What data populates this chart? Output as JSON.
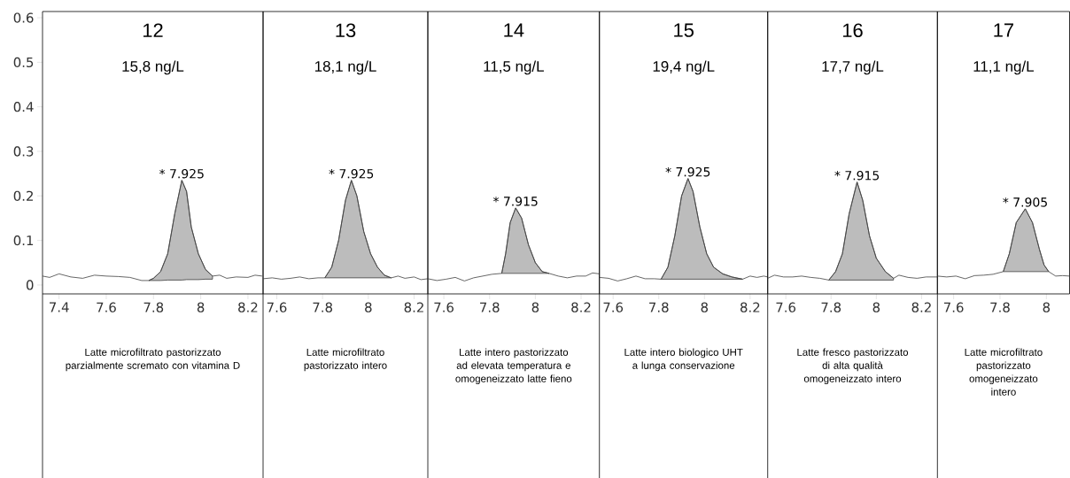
{
  "chart_data": [
    {
      "type": "line",
      "title": "12",
      "subtitle": "15,8 ng/L",
      "xlim": [
        7.33,
        8.264
      ],
      "xticks": [
        7.4,
        7.6,
        7.8,
        8,
        8.2
      ],
      "ylim": [
        -0.02,
        0.614
      ],
      "yticks": [
        0,
        0.1,
        0.2,
        0.3,
        0.4,
        0.5,
        0.6
      ],
      "series": [
        {
          "color": "#404040",
          "x": [
            7.33,
            7.36,
            7.4,
            7.45,
            7.5,
            7.55,
            7.6,
            7.65,
            7.7,
            7.75,
            7.78,
            7.8,
            7.83,
            7.86,
            7.89,
            7.92,
            7.94,
            7.96,
            7.99,
            8.02,
            8.05,
            8.08,
            8.11,
            8.15,
            8.2,
            8.23,
            8.26
          ],
          "values": [
            0.02,
            0.017,
            0.025,
            0.018,
            0.015,
            0.022,
            0.02,
            0.019,
            0.017,
            0.01,
            0.01,
            0.015,
            0.03,
            0.07,
            0.16,
            0.235,
            0.21,
            0.13,
            0.07,
            0.035,
            0.02,
            0.022,
            0.015,
            0.018,
            0.017,
            0.022,
            0.02
          ],
          "lower": [
            null,
            null,
            null,
            null,
            null,
            null,
            null,
            null,
            null,
            null,
            0.01,
            0.01,
            0.01,
            0.011,
            0.011,
            0.011,
            0.012,
            0.012,
            0.012,
            0.013,
            0.013,
            null,
            null,
            null,
            null,
            null,
            null
          ],
          "upper": [
            null,
            null,
            null,
            null,
            null,
            null,
            null,
            null,
            null,
            null,
            0.01,
            0.015,
            0.03,
            0.07,
            0.16,
            0.235,
            0.21,
            0.13,
            0.07,
            0.035,
            0.02,
            null,
            null,
            null,
            null,
            null,
            null
          ]
        }
      ],
      "annotations": [
        {
          "text": "* 7.925",
          "x": 7.92,
          "y": 0.235
        },
        "Latte microfiltrato pastorizzato parzialmente scremato con vitamina D"
      ]
    },
    {
      "type": "line",
      "title": "13",
      "subtitle": "18,1 ng/L",
      "xlim": [
        7.54,
        8.26
      ],
      "xticks": [
        7.6,
        7.8,
        8,
        8.2
      ],
      "ylim": [
        -0.02,
        0.614
      ],
      "tick_labels": "x",
      "series": [
        {
          "color": "#404040",
          "x": [
            7.54,
            7.58,
            7.62,
            7.66,
            7.7,
            7.74,
            7.78,
            7.81,
            7.84,
            7.87,
            7.9,
            7.926,
            7.95,
            7.98,
            8.01,
            8.04,
            8.07,
            8.1,
            8.13,
            8.16,
            8.2,
            8.23,
            8.26
          ],
          "values": [
            0.014,
            0.016,
            0.013,
            0.015,
            0.018,
            0.014,
            0.016,
            0.016,
            0.04,
            0.1,
            0.19,
            0.235,
            0.2,
            0.12,
            0.07,
            0.04,
            0.022,
            0.016,
            0.02,
            0.015,
            0.018,
            0.012,
            0.014
          ],
          "lower": [
            null,
            null,
            null,
            null,
            null,
            null,
            null,
            0.016,
            0.016,
            0.016,
            0.016,
            0.016,
            0.016,
            0.016,
            0.016,
            0.016,
            0.016,
            0.016,
            null,
            null,
            null,
            null,
            null
          ],
          "upper": [
            null,
            null,
            null,
            null,
            null,
            null,
            null,
            0.016,
            0.04,
            0.1,
            0.19,
            0.235,
            0.2,
            0.12,
            0.07,
            0.04,
            0.022,
            0.016,
            null,
            null,
            null,
            null,
            null
          ]
        }
      ],
      "annotations": [
        {
          "text": "* 7.925",
          "x": 7.926,
          "y": 0.235
        },
        "Latte microfiltrato pastorizzato intero"
      ]
    },
    {
      "type": "line",
      "title": "14",
      "subtitle": "11,5 ng/L",
      "xlim": [
        7.53,
        8.28
      ],
      "xticks": [
        7.6,
        7.8,
        8,
        8.2
      ],
      "ylim": [
        -0.02,
        0.614
      ],
      "tick_labels": "x",
      "series": [
        {
          "color": "#404040",
          "x": [
            7.53,
            7.57,
            7.61,
            7.65,
            7.69,
            7.73,
            7.77,
            7.81,
            7.853,
            7.87,
            7.89,
            7.914,
            7.94,
            7.97,
            8.0,
            8.03,
            8.06,
            8.1,
            8.14,
            8.18,
            8.22,
            8.25,
            8.28
          ],
          "values": [
            0.014,
            0.01,
            0.013,
            0.017,
            0.009,
            0.016,
            0.02,
            0.024,
            0.026,
            0.07,
            0.14,
            0.173,
            0.15,
            0.09,
            0.05,
            0.03,
            0.026,
            0.02,
            0.016,
            0.02,
            0.02,
            0.027,
            0.025
          ],
          "lower": [
            null,
            null,
            null,
            null,
            null,
            null,
            null,
            null,
            0.026,
            0.026,
            0.026,
            0.026,
            0.026,
            0.026,
            0.026,
            0.026,
            0.026,
            null,
            null,
            null,
            null,
            null,
            null
          ],
          "upper": [
            null,
            null,
            null,
            null,
            null,
            null,
            null,
            null,
            0.026,
            0.07,
            0.14,
            0.173,
            0.15,
            0.09,
            0.05,
            0.03,
            0.026,
            null,
            null,
            null,
            null,
            null,
            null
          ]
        }
      ],
      "annotations": [
        {
          "text": "* 7.915",
          "x": 7.914,
          "y": 0.173
        },
        "Latte intero pastorizzato ad elevata temperatura e omogeneizzato latte fieno"
      ]
    },
    {
      "type": "line",
      "title": "15",
      "subtitle": "19,4 ng/L",
      "xlim": [
        7.54,
        8.277
      ],
      "xticks": [
        7.6,
        7.8,
        8,
        8.2
      ],
      "ylim": [
        -0.02,
        0.614
      ],
      "tick_labels": "x",
      "series": [
        {
          "color": "#404040",
          "x": [
            7.54,
            7.58,
            7.62,
            7.66,
            7.7,
            7.74,
            7.78,
            7.81,
            7.84,
            7.87,
            7.9,
            7.928,
            7.95,
            7.98,
            8.01,
            8.04,
            8.08,
            8.12,
            8.167,
            8.2,
            8.23,
            8.26,
            8.277
          ],
          "values": [
            0.017,
            0.015,
            0.009,
            0.014,
            0.02,
            0.014,
            0.014,
            0.013,
            0.04,
            0.11,
            0.2,
            0.239,
            0.21,
            0.13,
            0.07,
            0.04,
            0.025,
            0.018,
            0.013,
            0.02,
            0.017,
            0.02,
            0.018
          ],
          "lower": [
            null,
            null,
            null,
            null,
            null,
            null,
            null,
            0.013,
            0.013,
            0.013,
            0.013,
            0.013,
            0.013,
            0.013,
            0.013,
            0.013,
            0.013,
            0.013,
            0.013,
            null,
            null,
            null,
            null
          ],
          "upper": [
            null,
            null,
            null,
            null,
            null,
            null,
            null,
            0.013,
            0.04,
            0.11,
            0.2,
            0.239,
            0.21,
            0.13,
            0.07,
            0.04,
            0.025,
            0.018,
            0.013,
            null,
            null,
            null,
            null
          ]
        }
      ],
      "annotations": [
        {
          "text": "* 7.925",
          "x": 7.928,
          "y": 0.239
        },
        "Latte intero biologico UHT a lunga conservazione"
      ]
    },
    {
      "type": "line",
      "title": "16",
      "subtitle": "17,7 ng/L",
      "xlim": [
        7.52,
        8.27
      ],
      "xticks": [
        7.6,
        7.8,
        8,
        8.2
      ],
      "ylim": [
        -0.02,
        0.614
      ],
      "tick_labels": "x",
      "series": [
        {
          "color": "#404040",
          "x": [
            7.52,
            7.55,
            7.59,
            7.63,
            7.67,
            7.71,
            7.75,
            7.79,
            7.82,
            7.85,
            7.88,
            7.915,
            7.94,
            7.97,
            8.0,
            8.04,
            8.076,
            8.1,
            8.14,
            8.18,
            8.22,
            8.27
          ],
          "values": [
            0.015,
            0.022,
            0.018,
            0.018,
            0.02,
            0.017,
            0.015,
            0.011,
            0.03,
            0.07,
            0.16,
            0.231,
            0.19,
            0.11,
            0.06,
            0.03,
            0.015,
            0.022,
            0.017,
            0.015,
            0.018,
            0.018
          ],
          "lower": [
            null,
            null,
            null,
            null,
            null,
            null,
            null,
            0.011,
            0.011,
            0.011,
            0.011,
            0.011,
            0.011,
            0.011,
            0.011,
            0.011,
            0.011,
            null,
            null,
            null,
            null,
            null
          ],
          "upper": [
            null,
            null,
            null,
            null,
            null,
            null,
            null,
            0.011,
            0.03,
            0.07,
            0.16,
            0.231,
            0.19,
            0.11,
            0.06,
            0.03,
            0.015,
            null,
            null,
            null,
            null,
            null
          ]
        }
      ],
      "annotations": [
        {
          "text": "* 7.915",
          "x": 7.915,
          "y": 0.231
        },
        "Latte fresco pastorizzato di alta qualità omogeneizzato intero"
      ]
    },
    {
      "type": "line",
      "title": "17",
      "subtitle": "11,1 ng/L",
      "xlim": [
        7.53,
        8.1
      ],
      "xticks": [
        7.6,
        7.8,
        8
      ],
      "ylim": [
        -0.02,
        0.614
      ],
      "tick_labels": "x",
      "series": [
        {
          "color": "#404040",
          "x": [
            7.53,
            7.57,
            7.61,
            7.65,
            7.69,
            7.73,
            7.77,
            7.814,
            7.84,
            7.87,
            7.909,
            7.94,
            7.97,
            7.99,
            8.01,
            8.04,
            8.07,
            8.1
          ],
          "values": [
            0.02,
            0.018,
            0.02,
            0.014,
            0.021,
            0.022,
            0.024,
            0.03,
            0.07,
            0.14,
            0.171,
            0.14,
            0.08,
            0.045,
            0.03,
            0.02,
            0.021,
            0.02
          ],
          "lower": [
            null,
            null,
            null,
            null,
            null,
            null,
            null,
            0.03,
            0.03,
            0.03,
            0.03,
            0.03,
            0.03,
            0.03,
            0.03,
            null,
            null,
            null
          ],
          "upper": [
            null,
            null,
            null,
            null,
            null,
            null,
            null,
            0.03,
            0.07,
            0.14,
            0.171,
            0.14,
            0.08,
            0.045,
            0.03,
            null,
            null,
            null
          ]
        }
      ],
      "annotations": [
        {
          "text": "* 7.905",
          "x": 7.909,
          "y": 0.171
        },
        "Latte microfiltrato pastorizzato omogeneizzato intero"
      ]
    }
  ]
}
